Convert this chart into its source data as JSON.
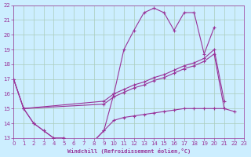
{
  "bg_color": "#cceeff",
  "line_color": "#993399",
  "grid_color": "#aaccbb",
  "xlabel": "Windchill (Refroidissement éolien,°C)",
  "xlabel_color": "#993399",
  "ylim": [
    13,
    22
  ],
  "xlim": [
    0,
    23
  ],
  "yticks": [
    13,
    14,
    15,
    16,
    17,
    18,
    19,
    20,
    21,
    22
  ],
  "xticks": [
    0,
    1,
    2,
    3,
    4,
    5,
    6,
    7,
    8,
    9,
    10,
    11,
    12,
    13,
    14,
    15,
    16,
    17,
    18,
    19,
    20,
    21,
    22,
    23
  ],
  "line1": {
    "x": [
      0,
      1,
      2,
      3,
      4,
      5,
      6,
      7,
      8,
      9,
      10,
      11,
      12,
      13,
      14,
      15,
      16,
      17,
      18,
      19,
      20
    ],
    "y": [
      17.0,
      15.0,
      14.0,
      13.5,
      13.0,
      13.0,
      12.8,
      12.7,
      12.8,
      13.5,
      16.0,
      19.0,
      20.3,
      21.5,
      21.8,
      21.5,
      20.3,
      21.5,
      21.5,
      18.7,
      20.5
    ]
  },
  "line2": {
    "x": [
      1,
      2,
      3,
      4,
      5,
      6,
      7,
      8,
      9,
      10,
      11,
      12,
      13,
      14,
      15,
      16,
      17,
      18,
      19,
      20,
      21,
      22
    ],
    "y": [
      15.0,
      14.0,
      13.5,
      13.0,
      13.0,
      12.8,
      12.7,
      12.8,
      13.5,
      14.2,
      14.4,
      14.5,
      14.6,
      14.7,
      14.8,
      14.9,
      15.0,
      15.0,
      15.0,
      15.0,
      15.0,
      14.8
    ]
  },
  "line3": {
    "x": [
      0,
      1,
      9,
      10,
      11,
      12,
      13,
      14,
      15,
      16,
      17,
      18,
      19,
      20,
      21
    ],
    "y": [
      17.0,
      15.0,
      15.3,
      15.8,
      16.1,
      16.4,
      16.6,
      16.9,
      17.1,
      17.4,
      17.7,
      17.9,
      18.2,
      18.7,
      15.0
    ]
  },
  "line4": {
    "x": [
      0,
      1,
      9,
      10,
      11,
      12,
      13,
      14,
      15,
      16,
      17,
      18,
      19,
      20,
      21
    ],
    "y": [
      17.0,
      15.0,
      15.5,
      16.0,
      16.3,
      16.6,
      16.8,
      17.1,
      17.3,
      17.6,
      17.9,
      18.1,
      18.4,
      19.0,
      15.5
    ]
  }
}
